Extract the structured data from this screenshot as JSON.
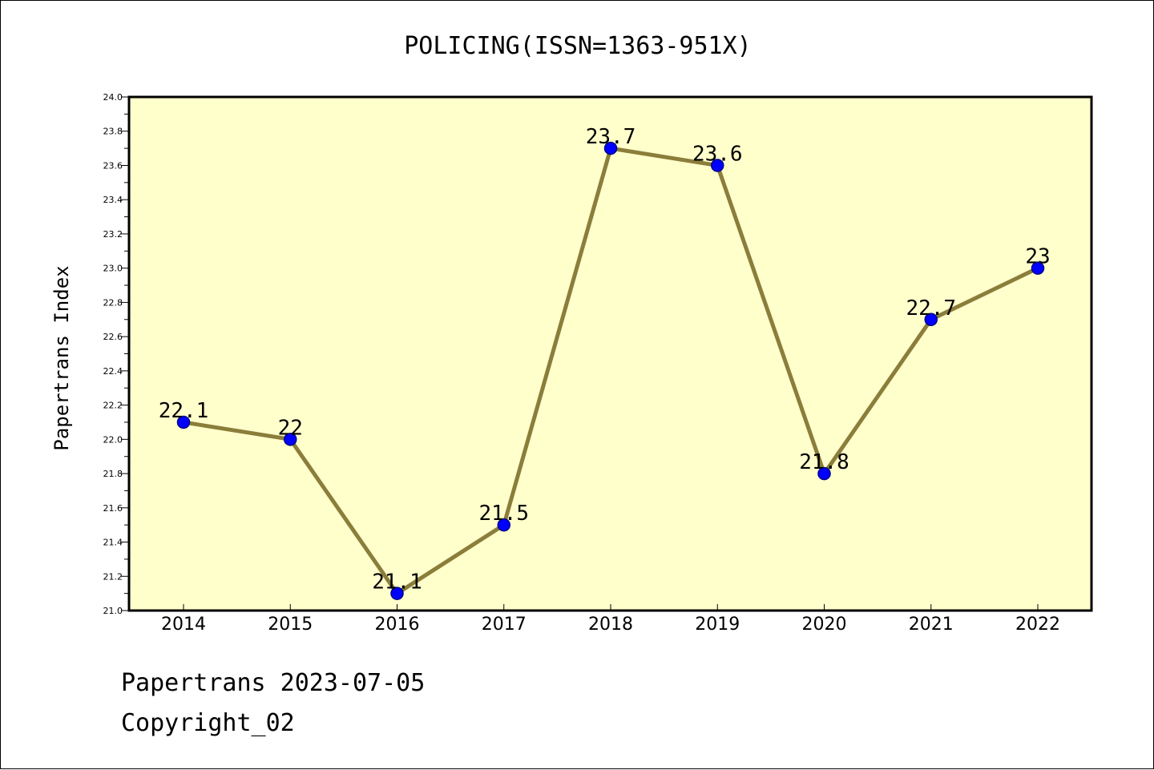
{
  "chart_data": {
    "type": "line",
    "title": "POLICING(ISSN=1363-951X)",
    "xlabel": "",
    "ylabel": "Papertrans Index",
    "categories": [
      "2014",
      "2015",
      "2016",
      "2017",
      "2018",
      "2019",
      "2020",
      "2021",
      "2022"
    ],
    "values": [
      22.1,
      22.0,
      21.1,
      21.5,
      23.7,
      23.6,
      21.8,
      22.7,
      23.0
    ],
    "data_labels": [
      "22.1",
      "22",
      "21.1",
      "21.5",
      "23.7",
      "23.6",
      "21.8",
      "22.7",
      "23"
    ],
    "ylim": [
      21.0,
      24.0
    ],
    "y_ticks": [
      "21.0",
      "21.2",
      "21.4",
      "21.6",
      "21.8",
      "22.0",
      "22.2",
      "22.4",
      "22.6",
      "22.8",
      "23.0",
      "23.2",
      "23.4",
      "23.6",
      "23.8",
      "24.0"
    ],
    "grid": false,
    "legend": "none"
  },
  "footer": {
    "line1": "Papertrans 2023-07-05",
    "line2": "Copyright_02"
  },
  "colors": {
    "plot_background": "#ffffcc",
    "line": "#8b7d3a",
    "marker_fill": "#0000ff",
    "marker_stroke": "#00008b",
    "axis": "#000000"
  }
}
